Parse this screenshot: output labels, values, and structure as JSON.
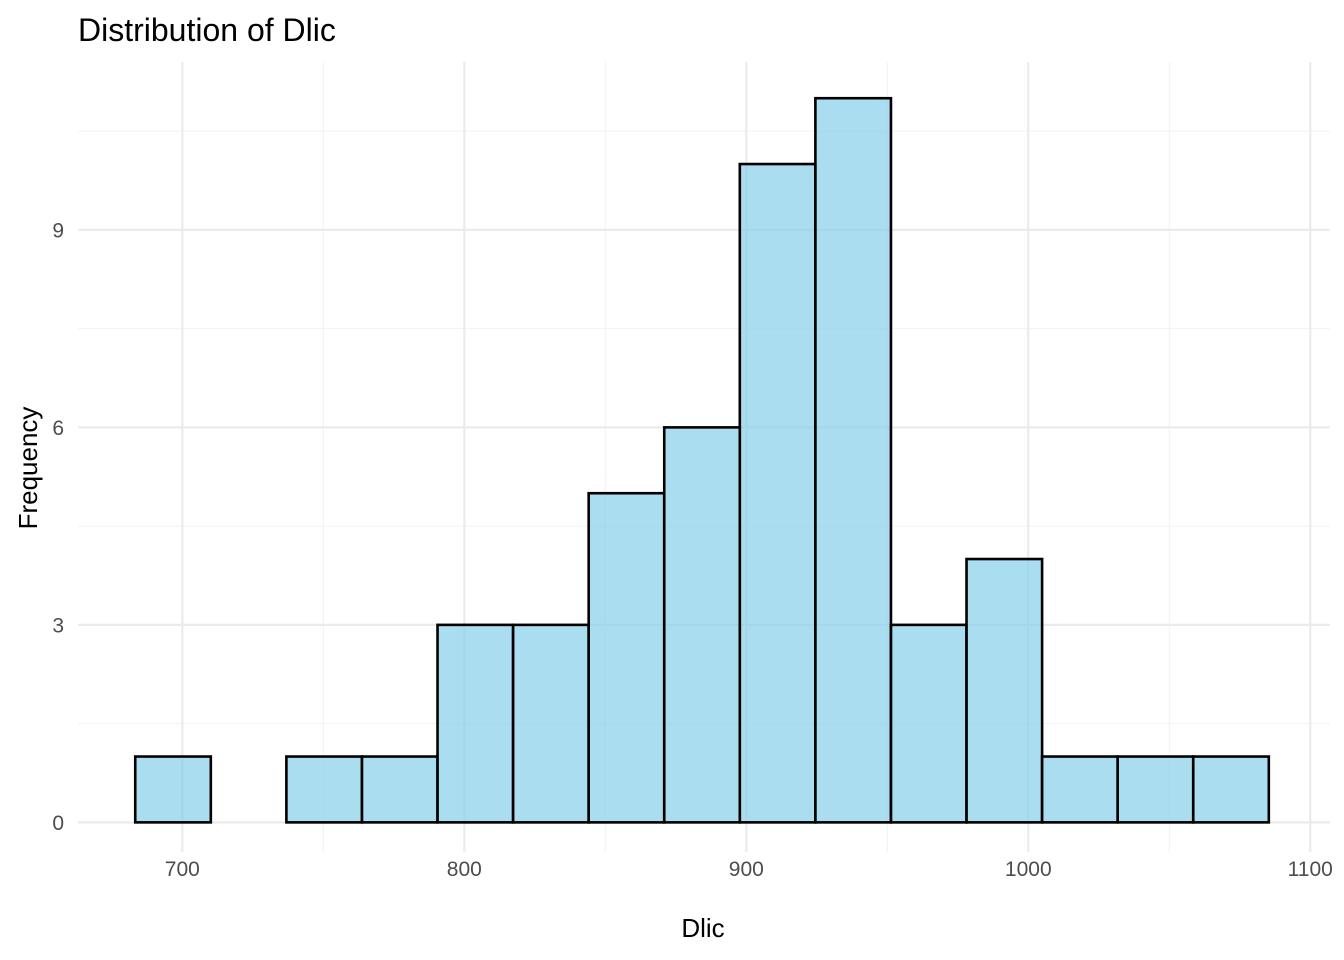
{
  "chart_data": {
    "type": "bar",
    "title": "Distribution of Dlic",
    "xlabel": "Dlic",
    "ylabel": "Frequency",
    "xlim": [
      663,
      1107
    ],
    "ylim": [
      -0.45,
      11.55
    ],
    "x_ticks": [
      700,
      800,
      900,
      1000,
      1100
    ],
    "x_minor_ticks": [
      750,
      850,
      950,
      1050
    ],
    "y_ticks": [
      0,
      3,
      6,
      9
    ],
    "y_minor_ticks": [
      1.5,
      4.5,
      7.5,
      10.5
    ],
    "grid": true,
    "bin_width": 26.8,
    "bins": [
      {
        "x0": 683.3,
        "x1": 710.1,
        "count": 1
      },
      {
        "x0": 710.1,
        "x1": 736.9,
        "count": 0
      },
      {
        "x0": 736.9,
        "x1": 763.7,
        "count": 1
      },
      {
        "x0": 763.7,
        "x1": 790.5,
        "count": 1
      },
      {
        "x0": 790.5,
        "x1": 817.3,
        "count": 3
      },
      {
        "x0": 817.3,
        "x1": 844.1,
        "count": 3
      },
      {
        "x0": 844.1,
        "x1": 870.9,
        "count": 5
      },
      {
        "x0": 870.9,
        "x1": 897.7,
        "count": 6
      },
      {
        "x0": 897.7,
        "x1": 924.5,
        "count": 10
      },
      {
        "x0": 924.5,
        "x1": 951.3,
        "count": 11
      },
      {
        "x0": 951.3,
        "x1": 978.1,
        "count": 3
      },
      {
        "x0": 978.1,
        "x1": 1004.9,
        "count": 4
      },
      {
        "x0": 1004.9,
        "x1": 1031.7,
        "count": 1
      },
      {
        "x0": 1031.7,
        "x1": 1058.5,
        "count": 1
      },
      {
        "x0": 1058.5,
        "x1": 1085.3,
        "count": 1
      }
    ],
    "colors": {
      "bar_fill": "#87ceeb",
      "bar_fill_opacity": 0.7,
      "bar_outline": "#000000"
    }
  }
}
